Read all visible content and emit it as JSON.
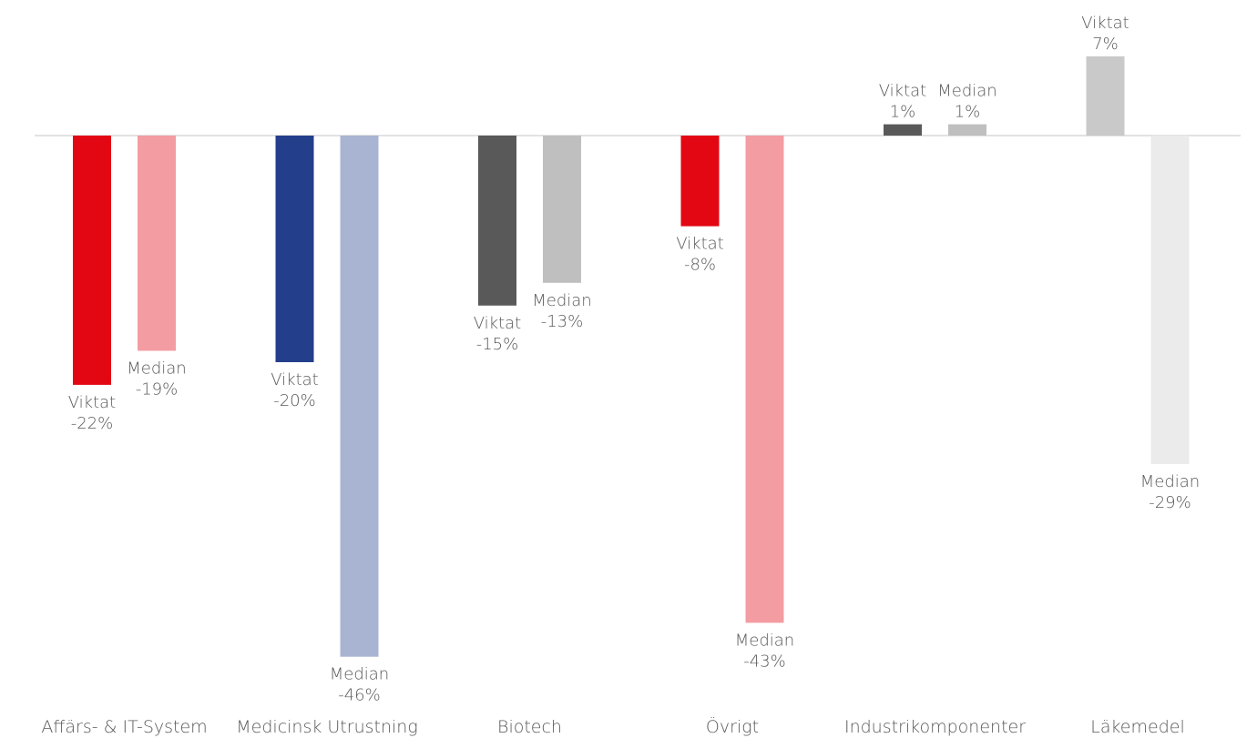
{
  "chart_data": {
    "type": "bar",
    "categories": [
      "Affärs- & IT-System",
      "Medicinsk Utrustning",
      "Biotech",
      "Övrigt",
      "Industrikomponenter",
      "Läkemedel"
    ],
    "series": [
      {
        "name": "Viktat",
        "values": [
          -22,
          -20,
          -15,
          -8,
          1,
          7
        ]
      },
      {
        "name": "Median",
        "values": [
          -19,
          -46,
          -13,
          -43,
          1,
          -29
        ]
      }
    ],
    "data_labels": [
      [
        {
          "name": "Viktat",
          "value": "-22%"
        },
        {
          "name": "Median",
          "value": "-19%"
        }
      ],
      [
        {
          "name": "Viktat",
          "value": "-20%"
        },
        {
          "name": "Median",
          "value": "-46%"
        }
      ],
      [
        {
          "name": "Viktat",
          "value": "-15%"
        },
        {
          "name": "Median",
          "value": "-13%"
        }
      ],
      [
        {
          "name": "Viktat",
          "value": "-8%"
        },
        {
          "name": "Median",
          "value": "-43%"
        }
      ],
      [
        {
          "name": "Viktat",
          "value": "1%"
        },
        {
          "name": "Median",
          "value": "1%"
        }
      ],
      [
        {
          "name": "Viktat",
          "value": "7%"
        },
        {
          "name": "Median",
          "value": "-29%"
        }
      ]
    ],
    "colors": [
      [
        "#e30613",
        "#f39ca1"
      ],
      [
        "#233e8b",
        "#a8b4d1"
      ],
      [
        "#595959",
        "#bfbfbf"
      ],
      [
        "#e30613",
        "#f39ca1"
      ],
      [
        "#595959",
        "#bfbfbf"
      ],
      [
        "#c9c9c9",
        "#ebebeb"
      ]
    ],
    "ylim": [
      -46,
      7
    ],
    "legend": "none",
    "grid": false
  }
}
